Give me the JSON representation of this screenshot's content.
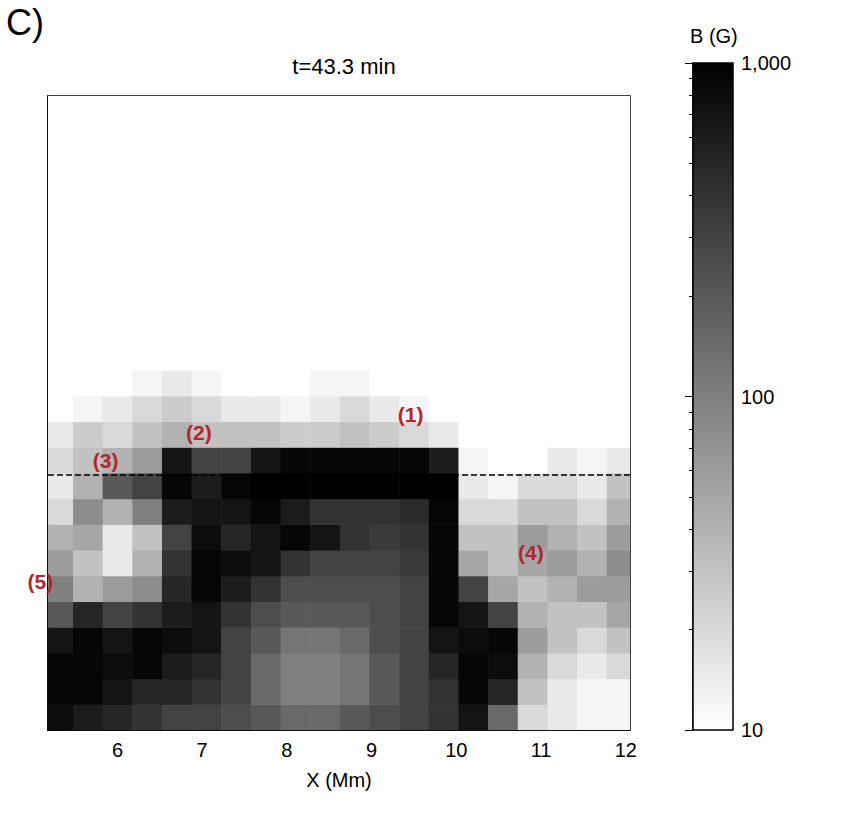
{
  "chart_data": {
    "type": "heatmap",
    "panel_label": "C)",
    "title": "t=43.3 min",
    "x_label": "X (Mm)",
    "xlim": [
      5.18,
      12.05
    ],
    "xticks": [
      6,
      7,
      8,
      9,
      10,
      11,
      12
    ],
    "ylim": [
      0,
      8.63
    ],
    "yticks": [
      0,
      1,
      2,
      3,
      4,
      5,
      6,
      7,
      8
    ],
    "tick_labels": "x",
    "colorbar": {
      "title": "B (G)",
      "range": [
        10,
        1000
      ],
      "ticks": [
        10,
        100,
        1000
      ],
      "log": true
    },
    "reference_line": {
      "y": 3.47,
      "line_style": "dashed"
    },
    "annotations": [
      {
        "text": "(1)",
        "x": 9.46,
        "y": 4.29
      },
      {
        "text": "(2)",
        "x": 6.96,
        "y": 4.05
      },
      {
        "text": "(3)",
        "x": 5.86,
        "y": 3.67
      },
      {
        "text": "(4)",
        "x": 10.88,
        "y": 2.41
      },
      {
        "text": "(5)",
        "x": 5.09,
        "y": 2.02
      }
    ],
    "cells": {
      "x": [
        5.3,
        5.65,
        6.0,
        6.35,
        6.7,
        7.05,
        7.4,
        7.75,
        8.1,
        8.45,
        8.8,
        9.15,
        9.5,
        9.85,
        10.2,
        10.55,
        10.9,
        11.25,
        11.6,
        11.95
      ],
      "y": [
        0.175,
        0.525,
        0.875,
        1.225,
        1.575,
        1.925,
        2.275,
        2.625,
        2.975,
        3.325,
        3.675,
        4.025,
        4.375,
        4.725,
        5.075,
        5.425,
        5.775,
        6.125,
        6.475,
        6.825,
        7.175,
        7.525,
        7.875,
        8.225,
        8.575
      ],
      "values": [
        [
          800,
          600,
          500,
          400,
          300,
          300,
          250,
          200,
          150,
          150,
          200,
          250,
          300,
          400,
          700,
          150,
          20,
          15,
          12,
          12
        ],
        [
          900,
          900,
          700,
          500,
          500,
          400,
          300,
          150,
          100,
          100,
          120,
          200,
          300,
          400,
          900,
          500,
          30,
          15,
          12,
          12
        ],
        [
          900,
          900,
          800,
          900,
          600,
          500,
          300,
          150,
          100,
          100,
          120,
          200,
          300,
          500,
          900,
          800,
          40,
          20,
          15,
          20
        ],
        [
          700,
          900,
          700,
          900,
          800,
          700,
          300,
          200,
          120,
          120,
          150,
          250,
          300,
          700,
          800,
          900,
          60,
          30,
          20,
          30
        ],
        [
          200,
          500,
          300,
          400,
          600,
          700,
          400,
          250,
          200,
          200,
          200,
          250,
          300,
          900,
          700,
          300,
          40,
          30,
          30,
          50
        ],
        [
          100,
          40,
          60,
          80,
          500,
          900,
          600,
          400,
          250,
          250,
          250,
          250,
          300,
          900,
          300,
          50,
          30,
          40,
          60,
          60
        ],
        [
          60,
          30,
          15,
          40,
          400,
          900,
          800,
          700,
          400,
          300,
          300,
          300,
          350,
          900,
          50,
          30,
          50,
          60,
          40,
          80
        ],
        [
          40,
          50,
          15,
          30,
          300,
          800,
          500,
          700,
          900,
          700,
          400,
          350,
          400,
          900,
          30,
          30,
          60,
          40,
          30,
          60
        ],
        [
          20,
          80,
          40,
          100,
          600,
          700,
          700,
          900,
          600,
          400,
          400,
          400,
          450,
          900,
          20,
          20,
          30,
          30,
          20,
          40
        ],
        [
          15,
          40,
          200,
          300,
          900,
          600,
          900,
          1000,
          1000,
          1000,
          1000,
          1000,
          1000,
          1000,
          15,
          12,
          20,
          20,
          15,
          30
        ],
        [
          20,
          30,
          40,
          60,
          700,
          300,
          300,
          700,
          900,
          900,
          900,
          900,
          900,
          600,
          12,
          10,
          10,
          15,
          12,
          15
        ],
        [
          15,
          25,
          20,
          30,
          40,
          30,
          30,
          30,
          25,
          25,
          30,
          25,
          20,
          15,
          10,
          10,
          10,
          10,
          10,
          10
        ],
        [
          10,
          12,
          15,
          20,
          25,
          20,
          15,
          15,
          12,
          15,
          20,
          15,
          12,
          10,
          10,
          10,
          10,
          10,
          10,
          10
        ],
        [
          10,
          10,
          10,
          12,
          15,
          12,
          10,
          10,
          10,
          12,
          12,
          10,
          10,
          10,
          10,
          10,
          10,
          10,
          10,
          10
        ],
        [
          10,
          10,
          10,
          10,
          10,
          10,
          10,
          10,
          10,
          10,
          10,
          10,
          10,
          10,
          10,
          10,
          10,
          10,
          10,
          10
        ],
        [
          10,
          10,
          10,
          10,
          10,
          10,
          10,
          10,
          10,
          10,
          10,
          10,
          10,
          10,
          10,
          10,
          10,
          10,
          10,
          10
        ],
        [
          10,
          10,
          10,
          10,
          10,
          10,
          10,
          10,
          10,
          10,
          10,
          10,
          10,
          10,
          10,
          10,
          10,
          10,
          10,
          10
        ],
        [
          10,
          10,
          10,
          10,
          10,
          10,
          10,
          10,
          10,
          10,
          10,
          10,
          10,
          10,
          10,
          10,
          10,
          10,
          10,
          10
        ],
        [
          10,
          10,
          10,
          10,
          10,
          10,
          10,
          10,
          10,
          10,
          10,
          10,
          10,
          10,
          10,
          10,
          10,
          10,
          10,
          10
        ],
        [
          10,
          10,
          10,
          10,
          10,
          10,
          10,
          10,
          10,
          10,
          10,
          10,
          10,
          10,
          10,
          10,
          10,
          10,
          10,
          10
        ],
        [
          10,
          10,
          10,
          10,
          10,
          10,
          10,
          10,
          10,
          10,
          10,
          10,
          10,
          10,
          10,
          10,
          10,
          10,
          10,
          10
        ],
        [
          10,
          10,
          10,
          10,
          10,
          10,
          10,
          10,
          10,
          10,
          10,
          10,
          10,
          10,
          10,
          10,
          10,
          10,
          10,
          10
        ],
        [
          10,
          10,
          10,
          10,
          10,
          10,
          10,
          10,
          10,
          10,
          10,
          10,
          10,
          10,
          10,
          10,
          10,
          10,
          10,
          10
        ],
        [
          10,
          10,
          10,
          10,
          10,
          10,
          10,
          10,
          10,
          10,
          10,
          10,
          10,
          10,
          10,
          10,
          10,
          10,
          10,
          10
        ],
        [
          10,
          10,
          10,
          10,
          10,
          10,
          10,
          10,
          10,
          10,
          10,
          10,
          10,
          10,
          10,
          10,
          10,
          10,
          10,
          10
        ]
      ]
    }
  }
}
